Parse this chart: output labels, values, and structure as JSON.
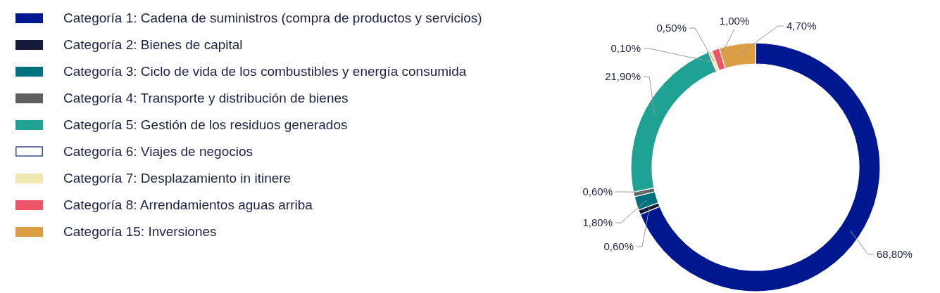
{
  "chart_data": {
    "type": "donut",
    "categories": [
      "Categoría 1: Cadena de suministros (compra de productos y servicios)",
      "Categoría 2: Bienes de capital",
      "Categoría 3: Ciclo de vida de los combustibles y energía consumida",
      "Categoría 4: Transporte y distribución de bienes",
      "Categoría 5: Gestión de los residuos generados",
      "Categoría 6: Viajes de negocios",
      "Categoría 7: Desplazamiento in itinere",
      "Categoría 8: Arrendamientos aguas arriba",
      "Categoría 15: Inversiones"
    ],
    "values": [
      68.8,
      0.6,
      1.8,
      0.6,
      21.9,
      0.1,
      0.5,
      1.0,
      4.7
    ],
    "colors": [
      "#00188f",
      "#161b3d",
      "#00717f",
      "#5f6062",
      "#1fa293",
      "#ffffff",
      "#efe8b2",
      "#eb5566",
      "#dc9e45"
    ],
    "value_labels": [
      "68,80%",
      "0,60%",
      "1,80%",
      "0,60%",
      "21,90%",
      "0,10%",
      "0,50%",
      "1,00%",
      "4,70%"
    ],
    "legend": "left"
  }
}
